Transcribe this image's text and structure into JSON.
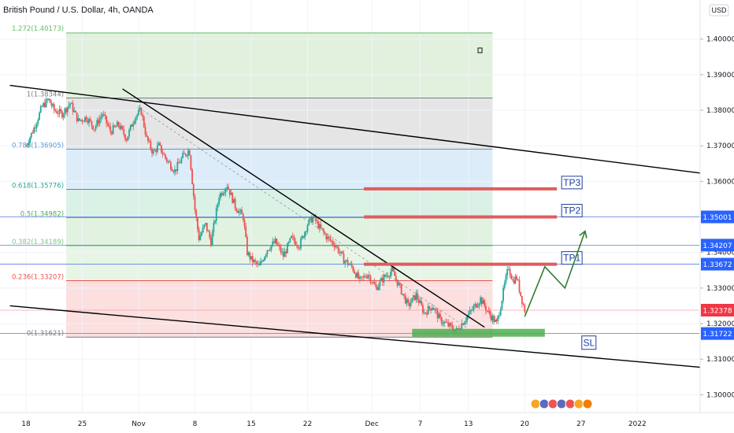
{
  "header": {
    "title": "British Pound / U.S. Dollar, 4h, OANDA",
    "currency": "USD"
  },
  "chart_data": {
    "type": "candlestick",
    "ylim": [
      1.295,
      1.411
    ],
    "y_ticks": [
      1.3,
      1.31,
      1.32,
      1.33,
      1.34,
      1.35,
      1.36,
      1.37,
      1.38,
      1.39,
      1.4
    ],
    "y_tick_labels": [
      "1.30000",
      "1.31000",
      "1.32000",
      "1.33000",
      "1.34000",
      "1.35000",
      "1.36000",
      "1.37000",
      "1.38000",
      "1.39000",
      "1.40000"
    ],
    "x_ticks": [
      {
        "label": "18",
        "day": 0
      },
      {
        "label": "25",
        "day": 7
      },
      {
        "label": "Nov",
        "day": 14
      },
      {
        "label": "8",
        "day": 21
      },
      {
        "label": "15",
        "day": 28
      },
      {
        "label": "22",
        "day": 35
      },
      {
        "label": "Dec",
        "day": 43
      },
      {
        "label": "7",
        "day": 49
      },
      {
        "label": "13",
        "day": 55
      },
      {
        "label": "20",
        "day": 62
      },
      {
        "label": "27",
        "day": 69
      },
      {
        "label": "2022",
        "day": 76
      }
    ],
    "price_path": [
      [
        0.0,
        1.37
      ],
      [
        1.0,
        1.375
      ],
      [
        2.0,
        1.381
      ],
      [
        2.8,
        1.383
      ],
      [
        3.5,
        1.38
      ],
      [
        4.5,
        1.379
      ],
      [
        5.5,
        1.382
      ],
      [
        6.5,
        1.377
      ],
      [
        7.5,
        1.378
      ],
      [
        8.5,
        1.375
      ],
      [
        9.5,
        1.379
      ],
      [
        10.5,
        1.374
      ],
      [
        11.5,
        1.376
      ],
      [
        12.5,
        1.372
      ],
      [
        13.5,
        1.378
      ],
      [
        14.3,
        1.38
      ],
      [
        15.0,
        1.372
      ],
      [
        15.8,
        1.368
      ],
      [
        16.5,
        1.37
      ],
      [
        17.5,
        1.366
      ],
      [
        18.5,
        1.363
      ],
      [
        19.5,
        1.367
      ],
      [
        20.3,
        1.369
      ],
      [
        21.0,
        1.352
      ],
      [
        21.5,
        1.344
      ],
      [
        22.3,
        1.348
      ],
      [
        23.0,
        1.343
      ],
      [
        24.0,
        1.356
      ],
      [
        25.0,
        1.359
      ],
      [
        26.0,
        1.353
      ],
      [
        27.0,
        1.35
      ],
      [
        27.5,
        1.34
      ],
      [
        28.0,
        1.338
      ],
      [
        29.0,
        1.336
      ],
      [
        30.0,
        1.341
      ],
      [
        31.0,
        1.343
      ],
      [
        32.0,
        1.339
      ],
      [
        33.0,
        1.344
      ],
      [
        34.0,
        1.342
      ],
      [
        35.0,
        1.348
      ],
      [
        35.7,
        1.35
      ],
      [
        36.5,
        1.347
      ],
      [
        37.5,
        1.344
      ],
      [
        38.5,
        1.342
      ],
      [
        39.5,
        1.338
      ],
      [
        40.5,
        1.336
      ],
      [
        41.5,
        1.332
      ],
      [
        42.5,
        1.334
      ],
      [
        43.5,
        1.33
      ],
      [
        44.5,
        1.333
      ],
      [
        45.5,
        1.335
      ],
      [
        46.5,
        1.33
      ],
      [
        47.5,
        1.325
      ],
      [
        48.5,
        1.328
      ],
      [
        49.5,
        1.323
      ],
      [
        50.5,
        1.325
      ],
      [
        51.5,
        1.321
      ],
      [
        52.5,
        1.3195
      ],
      [
        53.5,
        1.318
      ],
      [
        54.5,
        1.321
      ],
      [
        55.5,
        1.324
      ],
      [
        56.5,
        1.327
      ],
      [
        57.5,
        1.323
      ],
      [
        58.5,
        1.32
      ],
      [
        59.0,
        1.325
      ],
      [
        59.5,
        1.331
      ],
      [
        60.0,
        1.336
      ],
      [
        60.5,
        1.332
      ],
      [
        61.0,
        1.333
      ],
      [
        61.5,
        1.328
      ],
      [
        62.0,
        1.3238
      ]
    ],
    "fibonacci": [
      {
        "label": "1(1.38344)",
        "value": 1.38344,
        "color": "#787b86"
      },
      {
        "label": "0.786(1.36905)",
        "value": 1.36905,
        "color": "#5b9bd5"
      },
      {
        "label": "0.618(1.35776)",
        "value": 1.35776,
        "color": "#26a69a"
      },
      {
        "label": "0.5(1.34982)",
        "value": 1.34982,
        "color": "#4caf50"
      },
      {
        "label": "0.382(1.34189)",
        "value": 1.34189,
        "color": "#81c784"
      },
      {
        "label": "0.236(1.33207)",
        "value": 1.33207,
        "color": "#ef5350"
      },
      {
        "label": "0(1.31621)",
        "value": 1.31621,
        "color": "#787b86"
      }
    ],
    "fib_top_label": "1.272(1.40173)",
    "fib_top_value": 1.40173,
    "fib_day_range": [
      5.0,
      58.0
    ],
    "targets": [
      {
        "label": "TP1",
        "value": 1.3367,
        "day_from": 42.0,
        "day_to": 66.0
      },
      {
        "label": "TP2",
        "value": 1.35,
        "day_from": 42.0,
        "day_to": 66.0
      },
      {
        "label": "TP3",
        "value": 1.3579,
        "day_from": 42.0,
        "day_to": 66.0
      }
    ],
    "stop_loss": {
      "label": "SL",
      "value": 1.3172,
      "day_from": 48.0,
      "day_to": 69.0
    },
    "price_levels": [
      {
        "label": "1.35001",
        "value": 1.35001,
        "color": "#2962ff"
      },
      {
        "label": "1.34207",
        "value": 1.34207,
        "color": "#2962ff"
      },
      {
        "label": "1.33672",
        "value": 1.33672,
        "color": "#2962ff"
      },
      {
        "label": "1.32378",
        "value": 1.32378,
        "color": "#f23645"
      },
      {
        "label": "1.31722",
        "value": 1.31722,
        "color": "#2962ff"
      }
    ],
    "trendlines": [
      {
        "from": [
          -2.0,
          1.387
        ],
        "to": [
          85.0,
          1.362
        ]
      },
      {
        "from": [
          -2.0,
          1.325
        ],
        "to": [
          85.0,
          1.3075
        ]
      },
      {
        "from": [
          12.0,
          1.386
        ],
        "to": [
          57.0,
          1.319
        ]
      }
    ],
    "projection": [
      [
        62.0,
        1.322
      ],
      [
        64.5,
        1.336
      ],
      [
        67.0,
        1.33
      ],
      [
        69.5,
        1.346
      ]
    ],
    "colors": {
      "up": "#26a69a",
      "down": "#ef5350",
      "target_line": "#e05c5c",
      "stop_box": "#4caf50",
      "projection": "#2e7d32",
      "label_box_border": "#1e3f9e"
    }
  }
}
